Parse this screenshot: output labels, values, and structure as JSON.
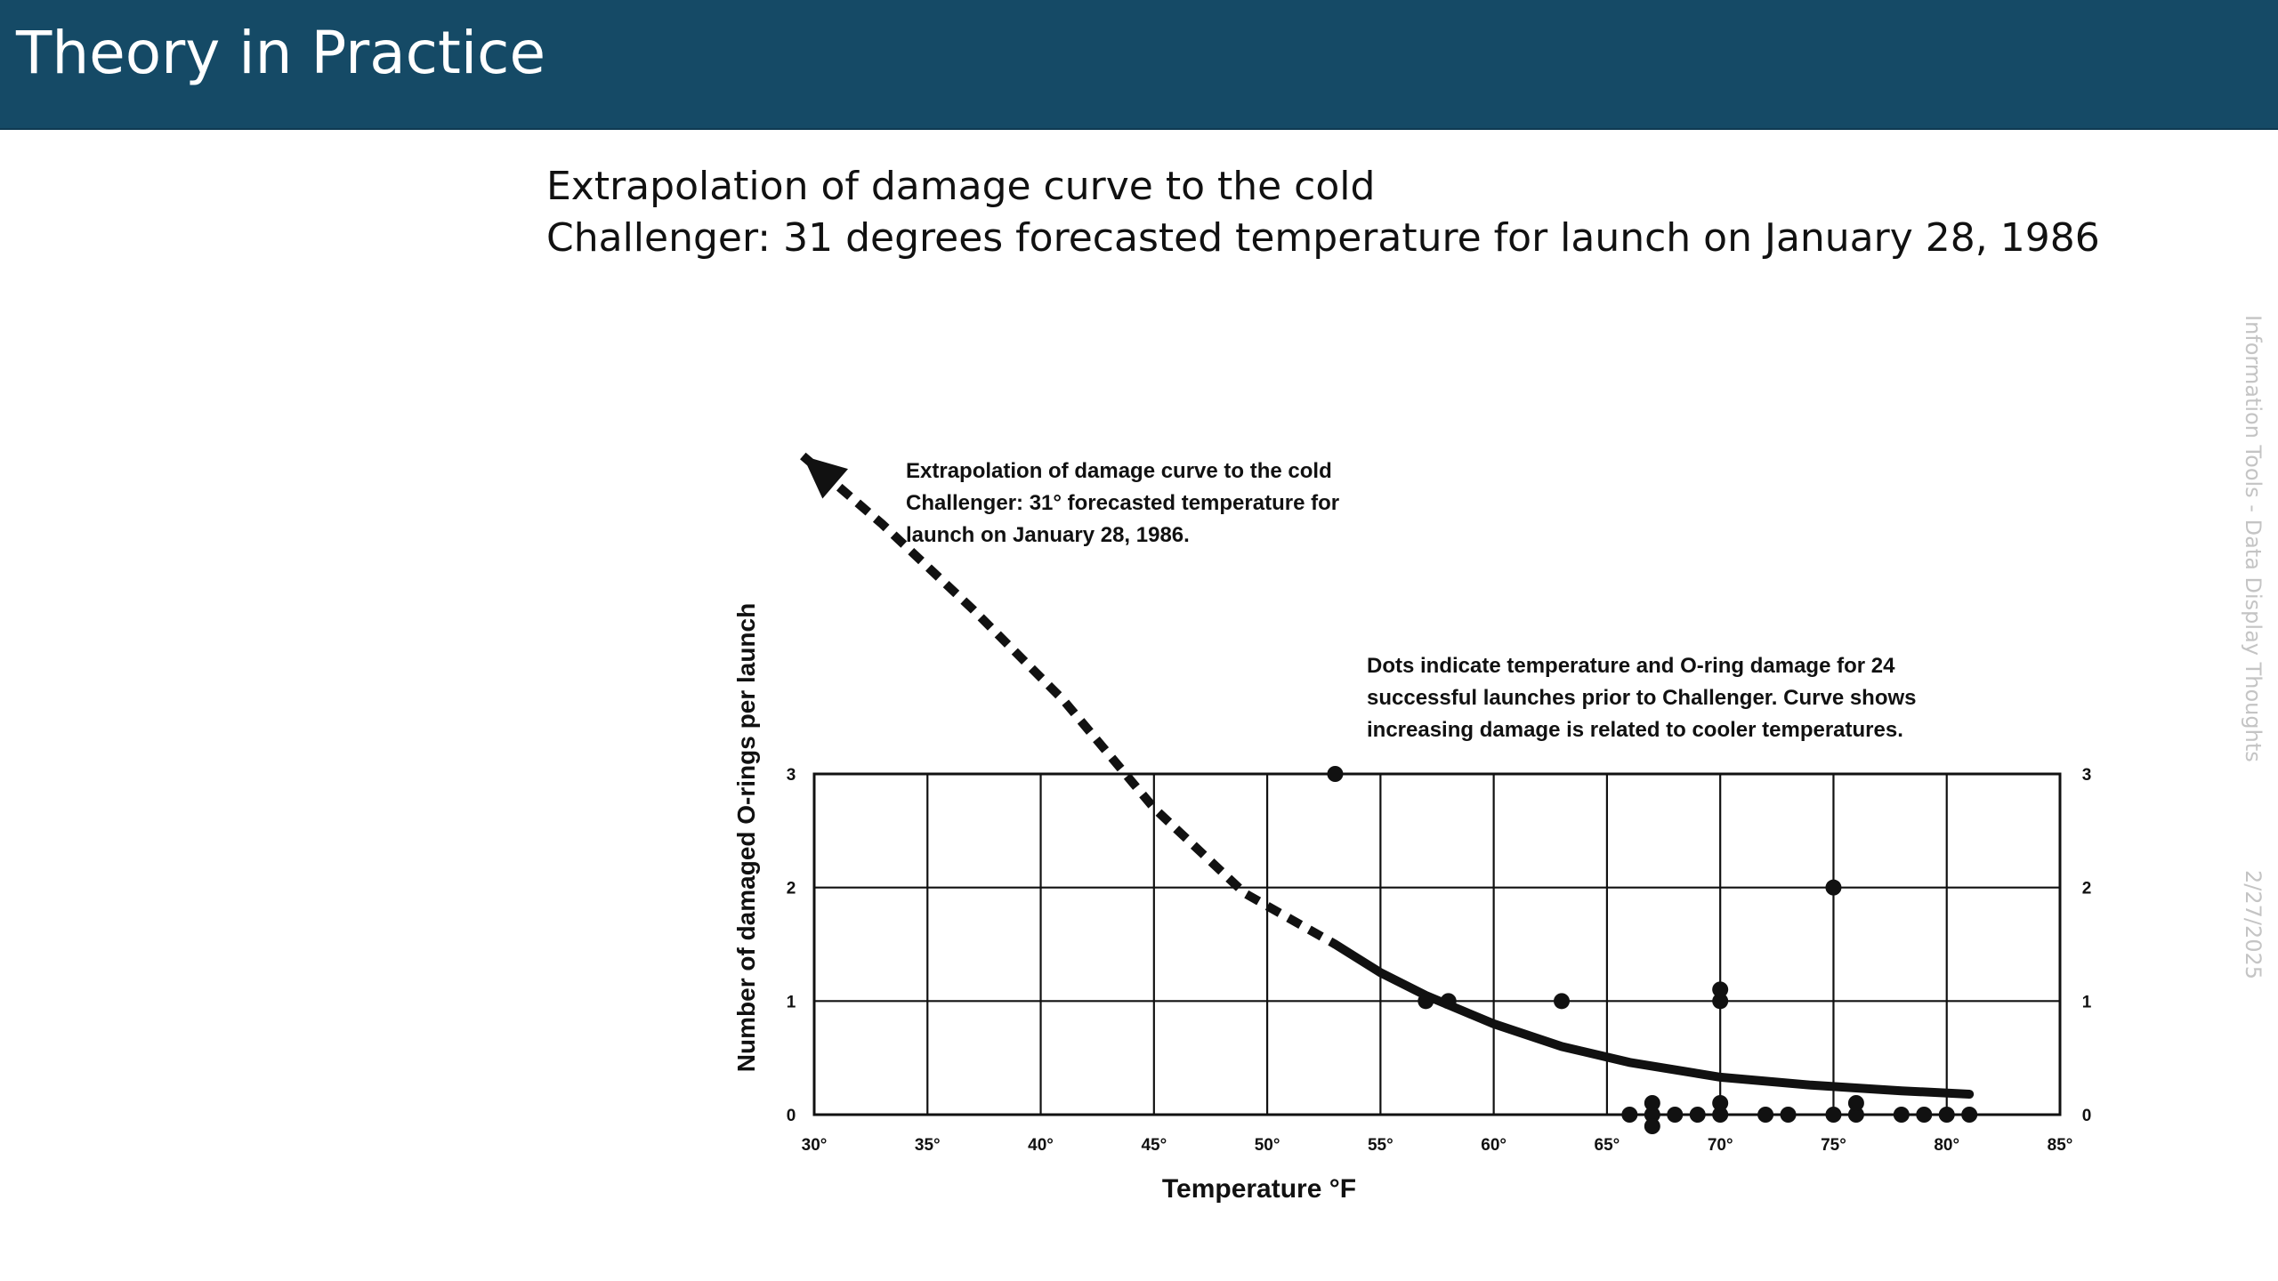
{
  "slide": {
    "title": "Theory in Practice",
    "subtitle_line1": "Extrapolation of damage curve to the cold",
    "subtitle_line2": "Challenger: 31 degrees forecasted temperature for launch on January 28, 1986",
    "footer_text": "Information Tools - Data Display Thoughts",
    "footer_date": "2/27/2025",
    "colors": {
      "title_bar": "#154a66",
      "title_text": "#ffffff",
      "footer_text": "#c4c4c4"
    }
  },
  "chart_data": {
    "type": "scatter",
    "title": "",
    "xlabel": "Temperature °F",
    "ylabel": "Number of damaged O-rings per launch",
    "xlim": [
      30,
      85
    ],
    "ylim": [
      0,
      3
    ],
    "x_ticks": [
      30,
      35,
      40,
      45,
      50,
      55,
      60,
      65,
      70,
      75,
      80,
      85
    ],
    "x_tick_labels": [
      "30°",
      "35°",
      "40°",
      "45°",
      "50°",
      "55°",
      "60°",
      "65°",
      "70°",
      "75°",
      "80°",
      "85°"
    ],
    "y_ticks": [
      0,
      1,
      2,
      3
    ],
    "y_tick_labels": [
      "0",
      "1",
      "2",
      "3"
    ],
    "grid": true,
    "annotations": [
      {
        "lines": [
          "Extrapolation of damage curve to the cold",
          "Challenger: 31° forecasted temperature for",
          "launch on January 28, 1986."
        ]
      },
      {
        "lines": [
          "Dots indicate temperature and O-ring damage for 24",
          "successful launches prior to Challenger. Curve shows",
          "increasing damage is related to cooler temperatures."
        ]
      }
    ],
    "points": [
      {
        "x": 53,
        "y": 3
      },
      {
        "x": 75,
        "y": 2
      },
      {
        "x": 57,
        "y": 1
      },
      {
        "x": 58,
        "y": 1
      },
      {
        "x": 63,
        "y": 1
      },
      {
        "x": 70,
        "y": 1
      },
      {
        "x": 70,
        "y": 1
      },
      {
        "x": 66,
        "y": 0
      },
      {
        "x": 67,
        "y": 0
      },
      {
        "x": 67,
        "y": 0
      },
      {
        "x": 67,
        "y": 0
      },
      {
        "x": 68,
        "y": 0
      },
      {
        "x": 69,
        "y": 0
      },
      {
        "x": 70,
        "y": 0
      },
      {
        "x": 70,
        "y": 0
      },
      {
        "x": 72,
        "y": 0
      },
      {
        "x": 73,
        "y": 0
      },
      {
        "x": 75,
        "y": 0
      },
      {
        "x": 76,
        "y": 0
      },
      {
        "x": 76,
        "y": 0
      },
      {
        "x": 78,
        "y": 0
      },
      {
        "x": 79,
        "y": 0
      },
      {
        "x": 80,
        "y": 0
      },
      {
        "x": 81,
        "y": 0
      }
    ],
    "curve_solid": [
      {
        "x": 53,
        "y": 1.5
      },
      {
        "x": 55,
        "y": 1.25
      },
      {
        "x": 57,
        "y": 1.05
      },
      {
        "x": 60,
        "y": 0.8
      },
      {
        "x": 63,
        "y": 0.6
      },
      {
        "x": 66,
        "y": 0.46
      },
      {
        "x": 70,
        "y": 0.33
      },
      {
        "x": 74,
        "y": 0.26
      },
      {
        "x": 78,
        "y": 0.21
      },
      {
        "x": 81,
        "y": 0.18
      }
    ],
    "curve_dashed": [
      {
        "x": 29.5,
        "y": 5.8
      },
      {
        "x": 33,
        "y": 5.2
      },
      {
        "x": 37,
        "y": 4.45
      },
      {
        "x": 41,
        "y": 3.65
      },
      {
        "x": 45,
        "y": 2.7
      },
      {
        "x": 49,
        "y": 1.95
      },
      {
        "x": 53,
        "y": 1.5
      }
    ]
  }
}
